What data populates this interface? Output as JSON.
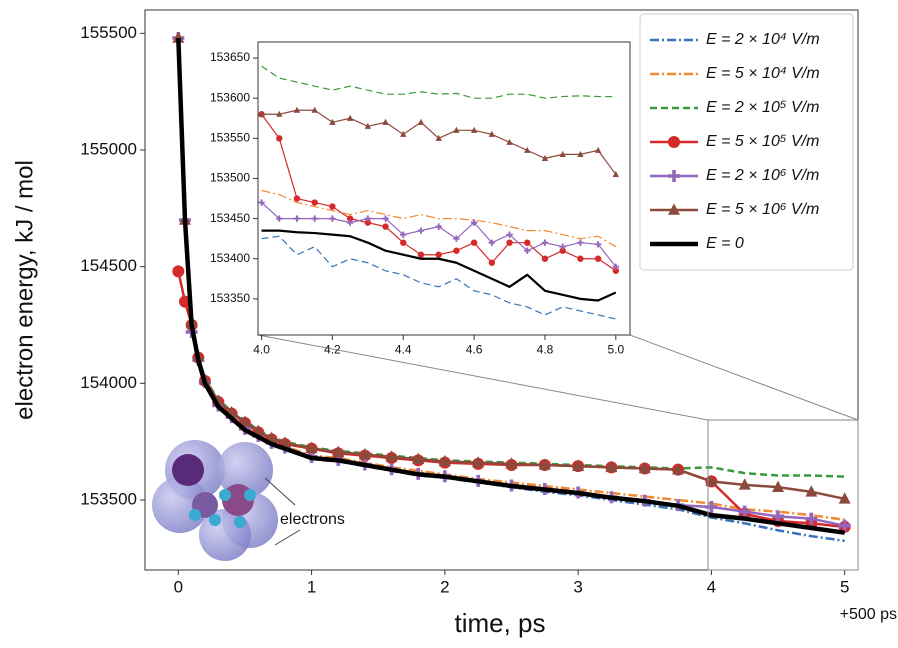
{
  "chart_data": [
    {
      "type": "line",
      "x_label": "time, ps",
      "y_label": "electron energy, kJ / mol",
      "x_note": "+500 ps",
      "annotation": "electrons",
      "xlim": [
        -0.25,
        5.1
      ],
      "ylim": [
        153200,
        155600
      ],
      "xticks": [
        0,
        1,
        2,
        3,
        4,
        5
      ],
      "yticks": [
        153500,
        154000,
        154500,
        155000,
        155500
      ],
      "x": [
        0,
        0.05,
        0.1,
        0.15,
        0.2,
        0.3,
        0.4,
        0.5,
        0.6,
        0.7,
        0.8,
        1.0,
        1.2,
        1.4,
        1.6,
        1.8,
        2.0,
        2.25,
        2.5,
        2.75,
        3.0,
        3.25,
        3.5,
        3.75,
        4.0,
        4.25,
        4.5,
        4.75,
        5.0
      ],
      "series": [
        {
          "name": "E = 2 × 10⁴ V/m",
          "color": "#3a72b8",
          "style": "dashdot",
          "linewidth": 2.5,
          "values": [
            155480,
            154700,
            154250,
            154100,
            154000,
            153900,
            153850,
            153800,
            153770,
            153735,
            153715,
            153675,
            153665,
            153645,
            153625,
            153605,
            153595,
            153575,
            153555,
            153535,
            153520,
            153500,
            153480,
            153460,
            153425,
            153400,
            153370,
            153345,
            153325
          ]
        },
        {
          "name": "E = 5 × 10⁴ V/m",
          "color": "#f28a30",
          "style": "dashdot",
          "linewidth": 2.5,
          "values": [
            155480,
            154700,
            154260,
            154110,
            154010,
            153910,
            153860,
            153810,
            153780,
            153750,
            153730,
            153690,
            153680,
            153660,
            153640,
            153625,
            153610,
            153590,
            153575,
            153560,
            153545,
            153530,
            153515,
            153500,
            153485,
            153460,
            153450,
            153435,
            153415
          ]
        },
        {
          "name": "E = 2 × 10⁵ V/m",
          "color": "#3a9a3a",
          "style": "dashed",
          "linewidth": 2.5,
          "values": [
            155480,
            154700,
            154270,
            154120,
            154020,
            153930,
            153880,
            153840,
            153800,
            153770,
            153750,
            153725,
            153710,
            153700,
            153690,
            153680,
            153670,
            153665,
            153660,
            153655,
            153650,
            153645,
            153640,
            153635,
            153640,
            153615,
            153605,
            153605,
            153600
          ]
        },
        {
          "name": "E = 5 × 10⁵ V/m",
          "color": "#d62a2a",
          "style": "solid",
          "linewidth": 2.5,
          "marker": "circle",
          "values": [
            154480,
            154350,
            154250,
            154110,
            154010,
            153920,
            153870,
            153830,
            153790,
            153760,
            153740,
            153720,
            153700,
            153690,
            153680,
            153670,
            153660,
            153655,
            153650,
            153650,
            153645,
            153640,
            153635,
            153630,
            153580,
            153440,
            153410,
            153400,
            153385
          ]
        },
        {
          "name": "E = 2 × 10⁶ V/m",
          "color": "#9467bd",
          "style": "solid",
          "linewidth": 2.5,
          "marker": "plus",
          "values": [
            155480,
            154700,
            154220,
            154100,
            154005,
            153905,
            153855,
            153805,
            153775,
            153745,
            153725,
            153685,
            153672,
            153652,
            153632,
            153612,
            153602,
            153582,
            153562,
            153547,
            153532,
            153512,
            153497,
            153478,
            153470,
            153450,
            153430,
            153420,
            153390
          ]
        },
        {
          "name": "E = 5 × 10⁶ V/m",
          "color": "#8c4a3c",
          "style": "solid",
          "linewidth": 2.5,
          "marker": "triangle",
          "values": [
            155480,
            154700,
            154260,
            154115,
            154015,
            153925,
            153875,
            153835,
            153795,
            153765,
            153745,
            153722,
            153705,
            153695,
            153685,
            153675,
            153665,
            153660,
            153655,
            153650,
            153645,
            153640,
            153635,
            153630,
            153580,
            153565,
            153555,
            153535,
            153505
          ]
        },
        {
          "name": "E = 0",
          "color": "#000000",
          "style": "solid",
          "linewidth": 4.5,
          "values": [
            155480,
            154700,
            154250,
            154100,
            154000,
            153900,
            153850,
            153800,
            153770,
            153740,
            153720,
            153680,
            153670,
            153650,
            153630,
            153610,
            153600,
            153580,
            153560,
            153545,
            153530,
            153510,
            153495,
            153475,
            153435,
            153420,
            153400,
            153380,
            153360
          ]
        }
      ]
    },
    {
      "type": "line",
      "xlim": [
        3.99,
        5.04
      ],
      "ylim": [
        153305,
        153670
      ],
      "xticks": [
        {
          "value": 4,
          "label": "4.0"
        },
        4.2,
        4.4,
        4.6,
        4.8,
        {
          "value": 5,
          "label": "5.0"
        }
      ],
      "yticks": [
        153350,
        153400,
        153450,
        153500,
        153550,
        153600,
        153650
      ],
      "x": [
        4.0,
        4.05,
        4.1,
        4.15,
        4.2,
        4.25,
        4.3,
        4.35,
        4.4,
        4.45,
        4.5,
        4.55,
        4.6,
        4.65,
        4.7,
        4.75,
        4.8,
        4.85,
        4.9,
        4.95,
        5.0
      ],
      "series": [
        {
          "color": "#3a72b8",
          "style": "dashed",
          "linewidth": 1.2,
          "values": [
            153425,
            153428,
            153405,
            153415,
            153390,
            153400,
            153395,
            153385,
            153380,
            153370,
            153365,
            153375,
            153360,
            153355,
            153345,
            153340,
            153330,
            153340,
            153335,
            153330,
            153325
          ]
        },
        {
          "color": "#f28a30",
          "style": "dashdot",
          "linewidth": 1.2,
          "values": [
            153485,
            153480,
            153470,
            153465,
            153460,
            153455,
            153460,
            153455,
            153450,
            153455,
            153450,
            153450,
            153448,
            153445,
            153440,
            153435,
            153435,
            153430,
            153425,
            153428,
            153415
          ]
        },
        {
          "color": "#3a9a3a",
          "style": "dashed",
          "linewidth": 1.2,
          "values": [
            153640,
            153625,
            153620,
            153615,
            153610,
            153615,
            153610,
            153605,
            153605,
            153608,
            153605,
            153606,
            153600,
            153600,
            153605,
            153605,
            153600,
            153602,
            153603,
            153602,
            153602
          ]
        },
        {
          "color": "#d62a2a",
          "style": "solid",
          "linewidth": 1.2,
          "marker": "circle",
          "values": [
            153580,
            153550,
            153475,
            153470,
            153465,
            153450,
            153445,
            153440,
            153420,
            153405,
            153405,
            153410,
            153420,
            153395,
            153420,
            153420,
            153400,
            153410,
            153400,
            153400,
            153385
          ]
        },
        {
          "color": "#9467bd",
          "style": "solid",
          "linewidth": 1.2,
          "marker": "plus",
          "values": [
            153470,
            153450,
            153450,
            153450,
            153450,
            153445,
            153450,
            153450,
            153430,
            153435,
            153440,
            153425,
            153445,
            153420,
            153430,
            153410,
            153420,
            153415,
            153420,
            153418,
            153390
          ]
        },
        {
          "color": "#8c4a3c",
          "style": "solid",
          "linewidth": 1.2,
          "marker": "triangle",
          "values": [
            153580,
            153580,
            153585,
            153585,
            153570,
            153575,
            153565,
            153570,
            153555,
            153570,
            153550,
            153560,
            153560,
            153555,
            153545,
            153535,
            153525,
            153530,
            153530,
            153535,
            153505
          ]
        },
        {
          "color": "#000000",
          "style": "solid",
          "linewidth": 2.2,
          "values": [
            153435,
            153435,
            153433,
            153432,
            153430,
            153428,
            153420,
            153410,
            153405,
            153400,
            153400,
            153395,
            153385,
            153375,
            153365,
            153380,
            153360,
            153355,
            153350,
            153348,
            153358
          ]
        }
      ]
    }
  ]
}
